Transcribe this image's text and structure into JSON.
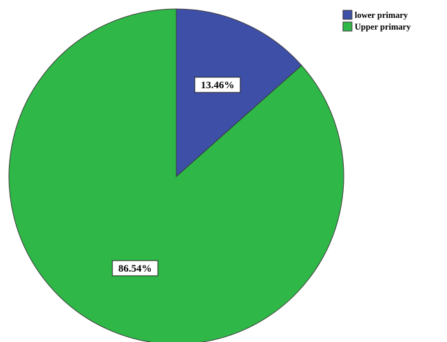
{
  "chart_data": {
    "type": "pie",
    "title": "",
    "slices": [
      {
        "label": "lower primary",
        "value": 13.46,
        "data_label": "13.46%",
        "color": "#3e4fa8"
      },
      {
        "label": "Upper primary",
        "value": 86.54,
        "data_label": "86.54%",
        "color": "#2fb847"
      }
    ],
    "legend": {
      "placement": "top-right",
      "entries": [
        "lower primary",
        "Upper primary"
      ]
    }
  }
}
